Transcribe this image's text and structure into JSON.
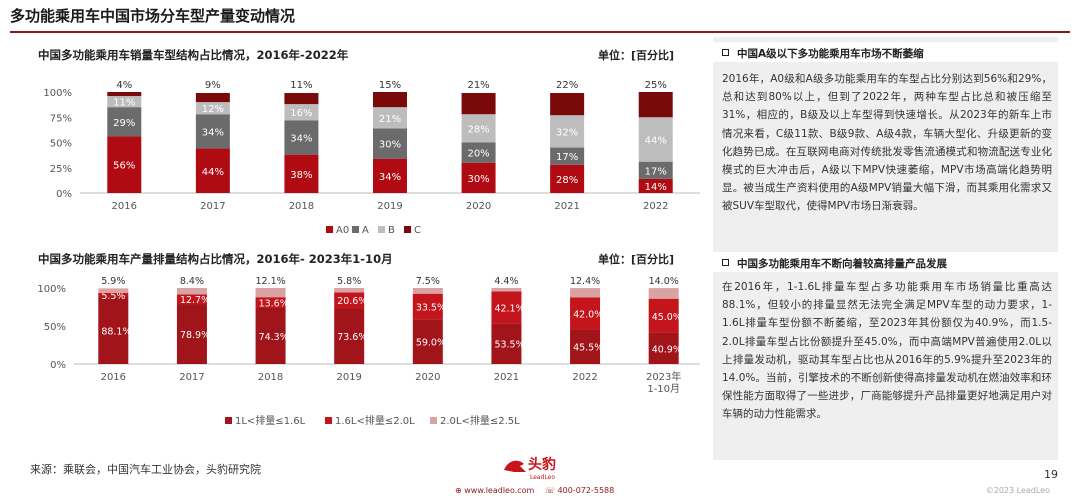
{
  "page": {
    "title": "多功能乘用车中国市场分车型产量变动情况",
    "page_number": "19",
    "source": "来源：乘联会，中国汽车工业协会，头豹研究院",
    "copyright": "©2023 LeadLeo",
    "footer_web": "www.leadleo.com",
    "footer_phone": "400-072-5588",
    "logo_text": "头豹",
    "logo_sub": "LeadLeo"
  },
  "colors": {
    "brand": "#8b1a1a",
    "A0": "#b00b12",
    "A": "#6b6b6b",
    "B": "#bdbdbd",
    "C": "#7a0a0a",
    "eng1": "#a0141a",
    "eng2": "#c4141c",
    "eng3": "#d9a3a3"
  },
  "chart_data": [
    {
      "type": "bar",
      "stacked": true,
      "title": "中国多功能乘用车销量车型结构占比情况，2016年-2022年",
      "unit": "单位：[百分比]",
      "categories": [
        "2016",
        "2017",
        "2018",
        "2019",
        "2020",
        "2021",
        "2022"
      ],
      "y_ticks": [
        "0%",
        "25%",
        "50%",
        "75%",
        "100%"
      ],
      "ylim": [
        0,
        100
      ],
      "legend_position": "bottom",
      "series": [
        {
          "name": "A0",
          "values": [
            56,
            44,
            38,
            34,
            30,
            28,
            14
          ],
          "labels": [
            "56%",
            "44%",
            "38%",
            "34%",
            "30%",
            "28%",
            "14%"
          ]
        },
        {
          "name": "A",
          "values": [
            29,
            34,
            34,
            30,
            20,
            17,
            17
          ],
          "labels": [
            "29%",
            "34%",
            "34%",
            "30%",
            "20%",
            "17%",
            "17%"
          ]
        },
        {
          "name": "B",
          "values": [
            11,
            12,
            16,
            21,
            28,
            32,
            44
          ],
          "labels": [
            "11%",
            "12%",
            "16%",
            "21%",
            "28%",
            "32%",
            "44%"
          ]
        },
        {
          "name": "C",
          "values": [
            4,
            9,
            11,
            15,
            21,
            22,
            25
          ],
          "labels": [
            "4%",
            "9%",
            "11%",
            "15%",
            "21%",
            "22%",
            "25%"
          ]
        }
      ]
    },
    {
      "type": "bar",
      "stacked": true,
      "title": "中国多功能乘用车产量排量结构占比情况，2016年- 2023年1-10月",
      "unit": "单位：[百分比]",
      "categories": [
        "2016",
        "2017",
        "2018",
        "2019",
        "2020",
        "2021",
        "2022",
        "2023年\n1-10月"
      ],
      "y_ticks": [
        "0%",
        "50%",
        "100%"
      ],
      "ylim": [
        0,
        100
      ],
      "legend_position": "bottom",
      "series": [
        {
          "name": "1L<排量≤1.6L",
          "values": [
            88.1,
            78.9,
            74.3,
            73.6,
            59.0,
            53.5,
            45.5,
            40.9
          ],
          "labels": [
            "88.1%",
            "78.9%",
            "74.3%",
            "73.6%",
            "59.0%",
            "53.5%",
            "45.5%",
            "40.9%"
          ]
        },
        {
          "name": "1.6L<排量≤2.0L",
          "values": [
            5.5,
            12.7,
            13.6,
            20.6,
            33.5,
            42.1,
            42.0,
            45.0
          ],
          "labels": [
            "5.5%",
            "12.7%",
            "13.6%",
            "20.6%",
            "33.5%",
            "42.1%",
            "42.0%",
            "45.0%"
          ]
        },
        {
          "name": "2.0L<排量≤2.5L",
          "values": [
            5.9,
            8.4,
            12.1,
            5.8,
            7.5,
            4.4,
            12.4,
            14.0
          ],
          "labels": [
            "5.9%",
            "8.4%",
            "12.1%",
            "5.8%",
            "7.5%",
            "4.4%",
            "12.4%",
            "14.0%"
          ]
        }
      ]
    }
  ],
  "panel": {
    "section1_title": "中国A级以下多功能乘用车市场不断萎缩",
    "section1_body": "2016年，A0级和A级多功能乘用车的车型占比分别达到56%和29%，总和达到80%以上，但到了2022年，两种车型占比总和被压缩至31%，相应的，B级及以上车型得到快速增长。从2023年的新车上市情况来看，C级11款、B级9款、A级4款，车辆大型化、升级更新的变化趋势已成。在互联网电商对传统批发零售流通模式和物流配送专业化模式的巨大冲击后，A级以下MPV快速萎缩，MPV市场高端化趋势明显。被当成生产资料使用的A级MPV销量大幅下滑，而其乘用化需求又被SUV车型取代，使得MPV市场日渐衰弱。",
    "section2_title": "中国多功能乘用车不断向着较高排量产品发展",
    "section2_body": "在2016年，1-1.6L排量车型占多功能乘用车市场销量比重高达88.1%，但较小的排量显然无法完全满足MPV车型的动力要求，1-1.6L排量车型份额不断萎缩，至2023年其份额仅为40.9%，而1.5-2.0L排量车型占比份额提升至45.0%，而中高端MPV普遍使用2.0L以上排量发动机，驱动其车型占比也从2016年的5.9%提升至2023年的14.0%。当前，引擎技术的不断创新使得高排量发动机在燃油效率和环保性能方面取得了一些进步，厂商能够提升产品排量更好地满足用户对车辆的动力性能需求。"
  }
}
